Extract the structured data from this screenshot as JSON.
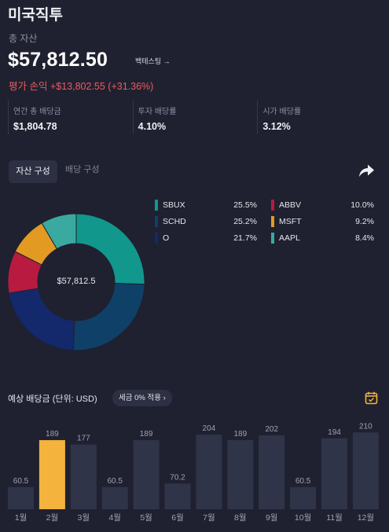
{
  "header": {
    "title": "미국직투"
  },
  "summary": {
    "total_label": "총 자산",
    "total_value": "$57,812.50",
    "backtest_label": "백테스팅 →",
    "pnl_label": "평가 손익",
    "pnl_value": "+$13,802.55 (+31.36%)"
  },
  "stats": [
    {
      "label": "연간 총 배당금",
      "value": "$1,804.78"
    },
    {
      "label": "투자 배당률",
      "value": "4.10%"
    },
    {
      "label": "시가 배당률",
      "value": "3.12%"
    }
  ],
  "tabs": {
    "active": "자산 구성",
    "inactive": "배당 구성"
  },
  "icons": {
    "share": "share-icon",
    "calendar": "calendar-icon"
  },
  "allocation": {
    "center_label": "$57,812.5",
    "items": [
      {
        "name": "SBUX",
        "pct": "25.5%",
        "value": 25.5,
        "color": "#11978c"
      },
      {
        "name": "SCHD",
        "pct": "25.2%",
        "value": 25.2,
        "color": "#0f4068"
      },
      {
        "name": "O",
        "pct": "21.7%",
        "value": 21.7,
        "color": "#13296c"
      },
      {
        "name": "ABBV",
        "pct": "10.0%",
        "value": 10.0,
        "color": "#b81a40"
      },
      {
        "name": "MSFT",
        "pct": "9.2%",
        "value": 9.2,
        "color": "#e39a23"
      },
      {
        "name": "AAPL",
        "pct": "8.4%",
        "value": 8.4,
        "color": "#3aaaa0"
      }
    ]
  },
  "dividend": {
    "title": "예상 배당금 (단위: USD)",
    "tax_label": "세금 0% 적용 ›",
    "highlight_color": "#f3b33d",
    "bar_color": "#2f3448",
    "ymax": 215,
    "months": [
      {
        "label": "1월",
        "value": 60.5,
        "value_label": "60.5",
        "highlight": false
      },
      {
        "label": "2월",
        "value": 189,
        "value_label": "189",
        "highlight": true
      },
      {
        "label": "3월",
        "value": 177,
        "value_label": "177",
        "highlight": false
      },
      {
        "label": "4월",
        "value": 60.5,
        "value_label": "60.5",
        "highlight": false
      },
      {
        "label": "5월",
        "value": 189,
        "value_label": "189",
        "highlight": false
      },
      {
        "label": "6월",
        "value": 70.2,
        "value_label": "70.2",
        "highlight": false
      },
      {
        "label": "7월",
        "value": 204,
        "value_label": "204",
        "highlight": false
      },
      {
        "label": "8월",
        "value": 189,
        "value_label": "189",
        "highlight": false
      },
      {
        "label": "9월",
        "value": 202,
        "value_label": "202",
        "highlight": false
      },
      {
        "label": "10월",
        "value": 60.5,
        "value_label": "60.5",
        "highlight": false
      },
      {
        "label": "11월",
        "value": 194,
        "value_label": "194",
        "highlight": false
      },
      {
        "label": "12월",
        "value": 210,
        "value_label": "210",
        "highlight": false
      }
    ]
  }
}
